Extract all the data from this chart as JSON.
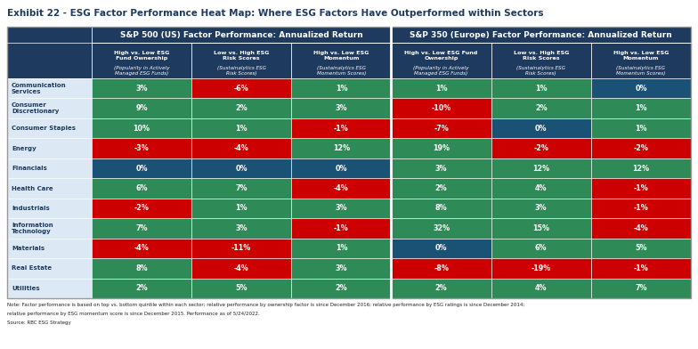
{
  "title": "Exhibit 22 - ESG Factor Performance Heat Map: Where ESG Factors Have Outperformed within Sectors",
  "sectors": [
    "Communication\nServices",
    "Consumer\nDiscretionary",
    "Consumer Staples",
    "Energy",
    "Financials",
    "Health Care",
    "Industrials",
    "Information\nTechnology",
    "Materials",
    "Real Estate",
    "Utilities"
  ],
  "col_headers_top": [
    "S&P 500 (US) Factor Performance: Annualized Return",
    "S&P 350 (Europe) Factor Performance: Annualized Return"
  ],
  "col_headers_sub": [
    "High vs. Low ESG\nFund Ownership\n(Popularity in Actively\nManaged ESG Funds)",
    "Low vs. High ESG\nRisk Scores\n(Sustainalytics ESG\nRisk Scores)",
    "High vs. Low ESG\nMomentum\n(Sustainalytics ESG\nMomentum Scores)",
    "High vs. Low ESG Fund\nOwnership\n(Popularity in Actively\nManaged ESG Funds)",
    "Low vs. High ESG\nRisk Scores\n(Sustainalytics ESG\nRisk Scores)",
    "High vs. Low ESG\nMomentum\n(Sustainalytics ESG\nMomentum Scores)"
  ],
  "values": [
    [
      3,
      -6,
      1,
      1,
      1,
      0
    ],
    [
      9,
      2,
      3,
      -10,
      2,
      1
    ],
    [
      10,
      1,
      -1,
      -7,
      0,
      1
    ],
    [
      -3,
      -4,
      12,
      19,
      -2,
      -2
    ],
    [
      0,
      0,
      0,
      3,
      12,
      12
    ],
    [
      6,
      7,
      -4,
      2,
      4,
      -1
    ],
    [
      -2,
      1,
      3,
      8,
      3,
      -1
    ],
    [
      7,
      3,
      -1,
      32,
      15,
      -4
    ],
    [
      -4,
      -11,
      1,
      0,
      6,
      5
    ],
    [
      8,
      -4,
      3,
      -8,
      -19,
      -1
    ],
    [
      2,
      5,
      2,
      2,
      4,
      7
    ]
  ],
  "colors": [
    [
      "#2e8b57",
      "#cc0000",
      "#2e8b57",
      "#2e8b57",
      "#2e8b57",
      "#1a5276"
    ],
    [
      "#2e8b57",
      "#2e8b57",
      "#2e8b57",
      "#cc0000",
      "#2e8b57",
      "#2e8b57"
    ],
    [
      "#2e8b57",
      "#2e8b57",
      "#cc0000",
      "#cc0000",
      "#1a5276",
      "#2e8b57"
    ],
    [
      "#cc0000",
      "#cc0000",
      "#2e8b57",
      "#2e8b57",
      "#cc0000",
      "#cc0000"
    ],
    [
      "#1a5276",
      "#1a5276",
      "#1a5276",
      "#2e8b57",
      "#2e8b57",
      "#2e8b57"
    ],
    [
      "#2e8b57",
      "#2e8b57",
      "#cc0000",
      "#2e8b57",
      "#2e8b57",
      "#cc0000"
    ],
    [
      "#cc0000",
      "#2e8b57",
      "#2e8b57",
      "#2e8b57",
      "#2e8b57",
      "#cc0000"
    ],
    [
      "#2e8b57",
      "#2e8b57",
      "#cc0000",
      "#2e8b57",
      "#2e8b57",
      "#cc0000"
    ],
    [
      "#cc0000",
      "#cc0000",
      "#2e8b57",
      "#1a5276",
      "#2e8b57",
      "#2e8b57"
    ],
    [
      "#2e8b57",
      "#cc0000",
      "#2e8b57",
      "#cc0000",
      "#cc0000",
      "#cc0000"
    ],
    [
      "#2e8b57",
      "#2e8b57",
      "#2e8b57",
      "#2e8b57",
      "#2e8b57",
      "#2e8b57"
    ]
  ],
  "header_bg": "#1e3a5f",
  "header_text": "#ffffff",
  "sector_bg": "#dce9f5",
  "sector_text": "#1e3a5f",
  "note_line1": "Note: Factor performance is based on top vs. bottom quintile within each sector; relative performance by ownership factor is since December 2016; relative performance by ESG ratings is since December 2014;",
  "note_line2": "relative performance by ESG momentum score is since December 2015. Performance as of 5/24/2022.",
  "note_line3": "Source: RBC ESG Strategy",
  "outer_border": "#888888",
  "figw": 7.84,
  "figh": 3.92,
  "dpi": 100
}
